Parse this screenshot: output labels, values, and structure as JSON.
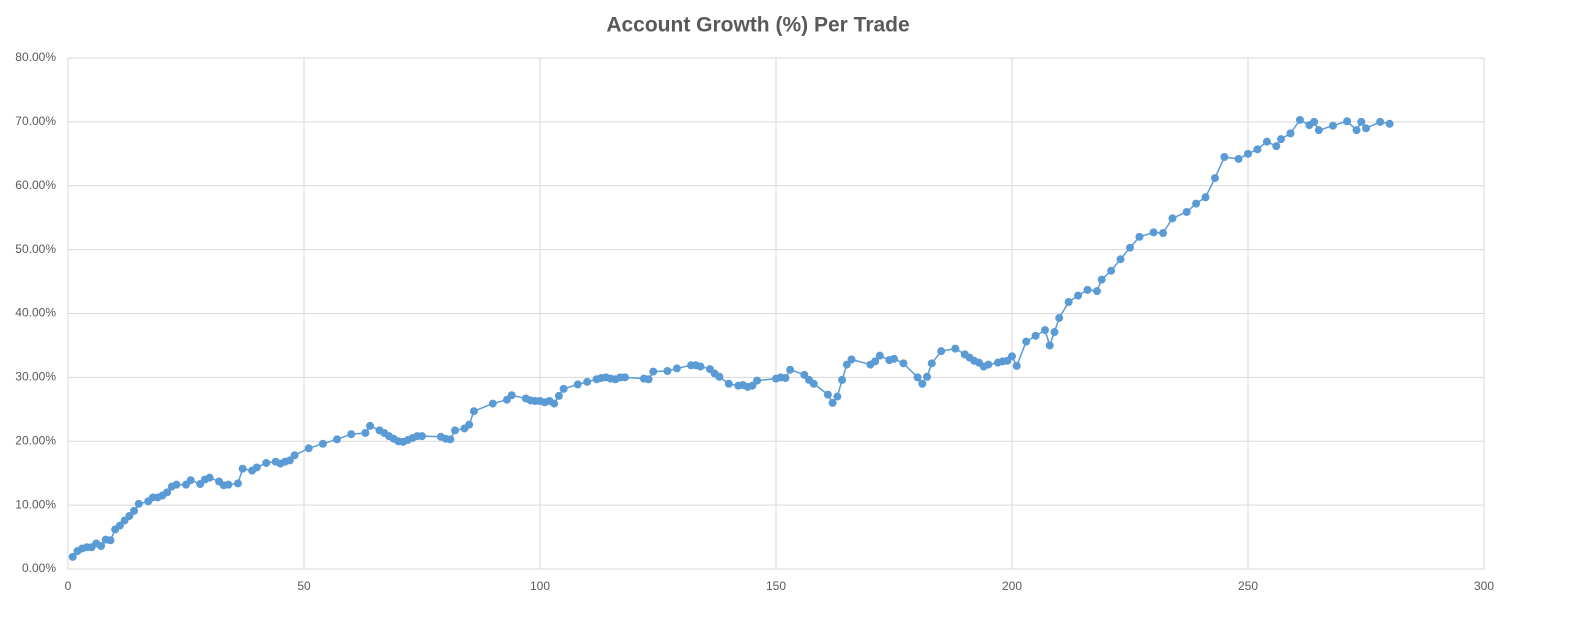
{
  "chart_data": {
    "type": "scatter-line",
    "title": "Account Growth (%) Per Trade",
    "color": "#5b9bd5",
    "grid": true,
    "xlim": [
      0,
      300
    ],
    "xticks": [
      0,
      50,
      100,
      150,
      200,
      250,
      300
    ],
    "ylim": [
      0,
      80
    ],
    "yticks": [
      {
        "value": 0,
        "label": "0.00%"
      },
      {
        "value": 10,
        "label": "10.00%"
      },
      {
        "value": 20,
        "label": "20.00%"
      },
      {
        "value": 30,
        "label": "30.00%"
      },
      {
        "value": 40,
        "label": "40.00%"
      },
      {
        "value": 50,
        "label": "50.00%"
      },
      {
        "value": 60,
        "label": "60.00%"
      },
      {
        "value": 70,
        "label": "70.00%"
      },
      {
        "value": 80,
        "label": "80.00%"
      }
    ],
    "x": [
      1,
      2,
      3,
      4,
      5,
      6,
      7,
      8,
      9,
      10,
      11,
      12,
      13,
      14,
      15,
      17,
      18,
      19,
      20,
      21,
      22,
      23,
      25,
      26,
      28,
      29,
      30,
      32,
      33,
      34,
      36,
      37,
      39,
      40,
      42,
      44,
      45,
      46,
      47,
      48,
      51,
      54,
      57,
      60,
      63,
      64,
      66,
      67,
      68,
      69,
      70,
      71,
      72,
      73,
      74,
      75,
      79,
      80,
      81,
      82,
      84,
      85,
      86,
      90,
      93,
      94,
      97,
      98,
      99,
      100,
      101,
      102,
      103,
      104,
      105,
      108,
      110,
      112,
      113,
      114,
      115,
      116,
      117,
      118,
      122,
      123,
      124,
      127,
      129,
      132,
      133,
      134,
      136,
      137,
      138,
      140,
      142,
      143,
      144,
      145,
      146,
      150,
      151,
      152,
      153,
      156,
      157,
      158,
      161,
      162,
      163,
      164,
      165,
      166,
      170,
      171,
      172,
      174,
      175,
      177,
      180,
      181,
      182,
      183,
      185,
      188,
      190,
      191,
      192,
      193,
      194,
      195,
      197,
      198,
      199,
      200,
      201,
      203,
      205,
      207,
      208,
      209,
      210,
      212,
      214,
      216,
      218,
      219,
      221,
      223,
      225,
      227,
      230,
      232,
      234,
      237,
      239,
      241,
      243,
      245,
      248,
      250,
      252,
      254,
      256,
      257,
      259,
      261,
      263,
      264,
      265,
      268,
      271,
      273,
      274,
      275,
      278,
      280
    ],
    "values": [
      1.9,
      2.8,
      3.2,
      3.4,
      3.4,
      4.0,
      3.6,
      4.6,
      4.5,
      6.2,
      6.8,
      7.6,
      8.3,
      9.1,
      10.2,
      10.6,
      11.2,
      11.2,
      11.5,
      12.0,
      12.9,
      13.2,
      13.2,
      13.9,
      13.3,
      14.0,
      14.3,
      13.7,
      13.1,
      13.2,
      13.4,
      15.7,
      15.4,
      15.9,
      16.6,
      16.8,
      16.5,
      16.8,
      17.0,
      17.8,
      18.9,
      19.6,
      20.3,
      21.1,
      21.3,
      22.4,
      21.7,
      21.3,
      20.8,
      20.4,
      20.0,
      19.9,
      20.2,
      20.5,
      20.8,
      20.8,
      20.7,
      20.4,
      20.3,
      21.7,
      22.0,
      22.6,
      24.7,
      25.9,
      26.5,
      27.2,
      26.7,
      26.4,
      26.3,
      26.3,
      26.1,
      26.3,
      25.9,
      27.1,
      28.2,
      28.9,
      29.3,
      29.7,
      29.9,
      30.0,
      29.8,
      29.7,
      30.0,
      30.0,
      29.8,
      29.7,
      30.9,
      31.0,
      31.4,
      31.9,
      31.9,
      31.7,
      31.3,
      30.6,
      30.1,
      29.0,
      28.7,
      28.8,
      28.5,
      28.7,
      29.5,
      29.8,
      30.0,
      29.9,
      31.2,
      30.4,
      29.6,
      29.0,
      27.3,
      26.0,
      27.0,
      29.6,
      32.0,
      32.8,
      32.0,
      32.5,
      33.4,
      32.7,
      32.9,
      32.2,
      30.0,
      29.0,
      30.1,
      32.2,
      34.1,
      34.5,
      33.6,
      33.1,
      32.6,
      32.3,
      31.7,
      32.0,
      32.3,
      32.5,
      32.6,
      33.3,
      31.8,
      35.6,
      36.5,
      37.4,
      35.0,
      37.1,
      39.3,
      41.8,
      42.8,
      43.7,
      43.5,
      45.3,
      46.7,
      48.5,
      50.3,
      52.0,
      52.7,
      52.6,
      54.9,
      55.9,
      57.2,
      58.2,
      61.2,
      64.5,
      64.2,
      65.0,
      65.7,
      66.9,
      66.2,
      67.3,
      68.2,
      70.3,
      69.5,
      70.0,
      68.7,
      69.4,
      70.1,
      68.7,
      70.0,
      69.0,
      70.0,
      69.7
    ]
  }
}
